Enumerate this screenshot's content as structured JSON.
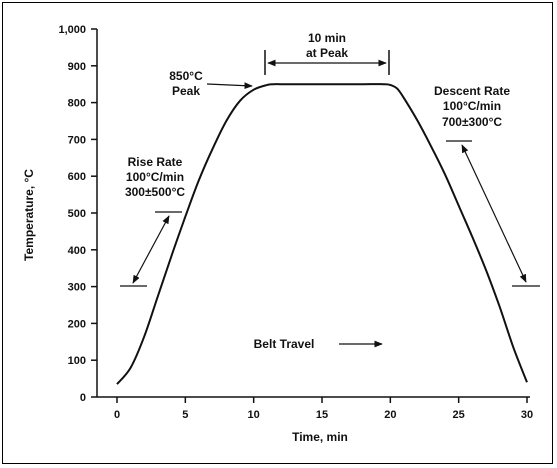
{
  "chart_data": {
    "type": "line",
    "xlabel": "Time, min",
    "ylabel": "Temperature, °C",
    "xlim": [
      0,
      30
    ],
    "ylim": [
      0,
      1000
    ],
    "x_ticks": [
      0,
      5,
      10,
      15,
      20,
      25,
      30
    ],
    "y_ticks": [
      0,
      100,
      200,
      300,
      400,
      500,
      600,
      700,
      800,
      900,
      1000
    ],
    "y_tick_labels": [
      "0",
      "100",
      "200",
      "300",
      "400",
      "500",
      "600",
      "700",
      "800",
      "900",
      "1,000"
    ],
    "grid": false,
    "series": [
      {
        "x": [
          0,
          1,
          2,
          3,
          4,
          5,
          6,
          7,
          8,
          9,
          10,
          11,
          11.5,
          12,
          14,
          16,
          18,
          19.5,
          20,
          20.5,
          21,
          22,
          23,
          24,
          25,
          26,
          27,
          28,
          29,
          30
        ],
        "y": [
          35,
          80,
          165,
          275,
          385,
          490,
          590,
          675,
          750,
          805,
          835,
          848,
          850,
          850,
          850,
          850,
          850,
          850,
          848,
          838,
          812,
          750,
          680,
          605,
          520,
          435,
          345,
          245,
          135,
          40
        ]
      }
    ],
    "annotations": {
      "peak_time": {
        "line1": "10 min",
        "line2": "at Peak",
        "x_start": 11,
        "x_end": 20,
        "y": 915
      },
      "peak_temp": {
        "line1": "850°C",
        "line2": "Peak"
      },
      "rise_rate": {
        "line1": "Rise Rate",
        "line2": "100°C/min",
        "line3": "300±500°C"
      },
      "descent_rate": {
        "line1": "Descent Rate",
        "line2": "100°C/min",
        "line3": "700±300°C"
      },
      "belt_travel": {
        "text": "Belt Travel"
      }
    }
  }
}
